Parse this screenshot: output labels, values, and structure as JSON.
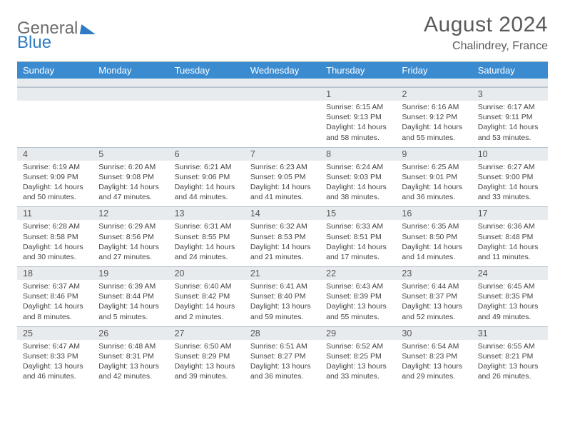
{
  "logo": {
    "general": "General",
    "blue": "Blue"
  },
  "title": "August 2024",
  "subtitle": "Chalindrey, France",
  "dow": [
    "Sunday",
    "Monday",
    "Tuesday",
    "Wednesday",
    "Thursday",
    "Friday",
    "Saturday"
  ],
  "colors": {
    "header_bg": "#3b8bd0",
    "daynum_bg": "#e8ebee",
    "blue_brand": "#2f7bc4"
  },
  "weeks": [
    {
      "nums": [
        "",
        "",
        "",
        "",
        "1",
        "2",
        "3"
      ],
      "cells": [
        null,
        null,
        null,
        null,
        {
          "sunrise": "Sunrise: 6:15 AM",
          "sunset": "Sunset: 9:13 PM",
          "day1": "Daylight: 14 hours",
          "day2": "and 58 minutes."
        },
        {
          "sunrise": "Sunrise: 6:16 AM",
          "sunset": "Sunset: 9:12 PM",
          "day1": "Daylight: 14 hours",
          "day2": "and 55 minutes."
        },
        {
          "sunrise": "Sunrise: 6:17 AM",
          "sunset": "Sunset: 9:11 PM",
          "day1": "Daylight: 14 hours",
          "day2": "and 53 minutes."
        }
      ]
    },
    {
      "nums": [
        "4",
        "5",
        "6",
        "7",
        "8",
        "9",
        "10"
      ],
      "cells": [
        {
          "sunrise": "Sunrise: 6:19 AM",
          "sunset": "Sunset: 9:09 PM",
          "day1": "Daylight: 14 hours",
          "day2": "and 50 minutes."
        },
        {
          "sunrise": "Sunrise: 6:20 AM",
          "sunset": "Sunset: 9:08 PM",
          "day1": "Daylight: 14 hours",
          "day2": "and 47 minutes."
        },
        {
          "sunrise": "Sunrise: 6:21 AM",
          "sunset": "Sunset: 9:06 PM",
          "day1": "Daylight: 14 hours",
          "day2": "and 44 minutes."
        },
        {
          "sunrise": "Sunrise: 6:23 AM",
          "sunset": "Sunset: 9:05 PM",
          "day1": "Daylight: 14 hours",
          "day2": "and 41 minutes."
        },
        {
          "sunrise": "Sunrise: 6:24 AM",
          "sunset": "Sunset: 9:03 PM",
          "day1": "Daylight: 14 hours",
          "day2": "and 38 minutes."
        },
        {
          "sunrise": "Sunrise: 6:25 AM",
          "sunset": "Sunset: 9:01 PM",
          "day1": "Daylight: 14 hours",
          "day2": "and 36 minutes."
        },
        {
          "sunrise": "Sunrise: 6:27 AM",
          "sunset": "Sunset: 9:00 PM",
          "day1": "Daylight: 14 hours",
          "day2": "and 33 minutes."
        }
      ]
    },
    {
      "nums": [
        "11",
        "12",
        "13",
        "14",
        "15",
        "16",
        "17"
      ],
      "cells": [
        {
          "sunrise": "Sunrise: 6:28 AM",
          "sunset": "Sunset: 8:58 PM",
          "day1": "Daylight: 14 hours",
          "day2": "and 30 minutes."
        },
        {
          "sunrise": "Sunrise: 6:29 AM",
          "sunset": "Sunset: 8:56 PM",
          "day1": "Daylight: 14 hours",
          "day2": "and 27 minutes."
        },
        {
          "sunrise": "Sunrise: 6:31 AM",
          "sunset": "Sunset: 8:55 PM",
          "day1": "Daylight: 14 hours",
          "day2": "and 24 minutes."
        },
        {
          "sunrise": "Sunrise: 6:32 AM",
          "sunset": "Sunset: 8:53 PM",
          "day1": "Daylight: 14 hours",
          "day2": "and 21 minutes."
        },
        {
          "sunrise": "Sunrise: 6:33 AM",
          "sunset": "Sunset: 8:51 PM",
          "day1": "Daylight: 14 hours",
          "day2": "and 17 minutes."
        },
        {
          "sunrise": "Sunrise: 6:35 AM",
          "sunset": "Sunset: 8:50 PM",
          "day1": "Daylight: 14 hours",
          "day2": "and 14 minutes."
        },
        {
          "sunrise": "Sunrise: 6:36 AM",
          "sunset": "Sunset: 8:48 PM",
          "day1": "Daylight: 14 hours",
          "day2": "and 11 minutes."
        }
      ]
    },
    {
      "nums": [
        "18",
        "19",
        "20",
        "21",
        "22",
        "23",
        "24"
      ],
      "cells": [
        {
          "sunrise": "Sunrise: 6:37 AM",
          "sunset": "Sunset: 8:46 PM",
          "day1": "Daylight: 14 hours",
          "day2": "and 8 minutes."
        },
        {
          "sunrise": "Sunrise: 6:39 AM",
          "sunset": "Sunset: 8:44 PM",
          "day1": "Daylight: 14 hours",
          "day2": "and 5 minutes."
        },
        {
          "sunrise": "Sunrise: 6:40 AM",
          "sunset": "Sunset: 8:42 PM",
          "day1": "Daylight: 14 hours",
          "day2": "and 2 minutes."
        },
        {
          "sunrise": "Sunrise: 6:41 AM",
          "sunset": "Sunset: 8:40 PM",
          "day1": "Daylight: 13 hours",
          "day2": "and 59 minutes."
        },
        {
          "sunrise": "Sunrise: 6:43 AM",
          "sunset": "Sunset: 8:39 PM",
          "day1": "Daylight: 13 hours",
          "day2": "and 55 minutes."
        },
        {
          "sunrise": "Sunrise: 6:44 AM",
          "sunset": "Sunset: 8:37 PM",
          "day1": "Daylight: 13 hours",
          "day2": "and 52 minutes."
        },
        {
          "sunrise": "Sunrise: 6:45 AM",
          "sunset": "Sunset: 8:35 PM",
          "day1": "Daylight: 13 hours",
          "day2": "and 49 minutes."
        }
      ]
    },
    {
      "nums": [
        "25",
        "26",
        "27",
        "28",
        "29",
        "30",
        "31"
      ],
      "cells": [
        {
          "sunrise": "Sunrise: 6:47 AM",
          "sunset": "Sunset: 8:33 PM",
          "day1": "Daylight: 13 hours",
          "day2": "and 46 minutes."
        },
        {
          "sunrise": "Sunrise: 6:48 AM",
          "sunset": "Sunset: 8:31 PM",
          "day1": "Daylight: 13 hours",
          "day2": "and 42 minutes."
        },
        {
          "sunrise": "Sunrise: 6:50 AM",
          "sunset": "Sunset: 8:29 PM",
          "day1": "Daylight: 13 hours",
          "day2": "and 39 minutes."
        },
        {
          "sunrise": "Sunrise: 6:51 AM",
          "sunset": "Sunset: 8:27 PM",
          "day1": "Daylight: 13 hours",
          "day2": "and 36 minutes."
        },
        {
          "sunrise": "Sunrise: 6:52 AM",
          "sunset": "Sunset: 8:25 PM",
          "day1": "Daylight: 13 hours",
          "day2": "and 33 minutes."
        },
        {
          "sunrise": "Sunrise: 6:54 AM",
          "sunset": "Sunset: 8:23 PM",
          "day1": "Daylight: 13 hours",
          "day2": "and 29 minutes."
        },
        {
          "sunrise": "Sunrise: 6:55 AM",
          "sunset": "Sunset: 8:21 PM",
          "day1": "Daylight: 13 hours",
          "day2": "and 26 minutes."
        }
      ]
    }
  ]
}
